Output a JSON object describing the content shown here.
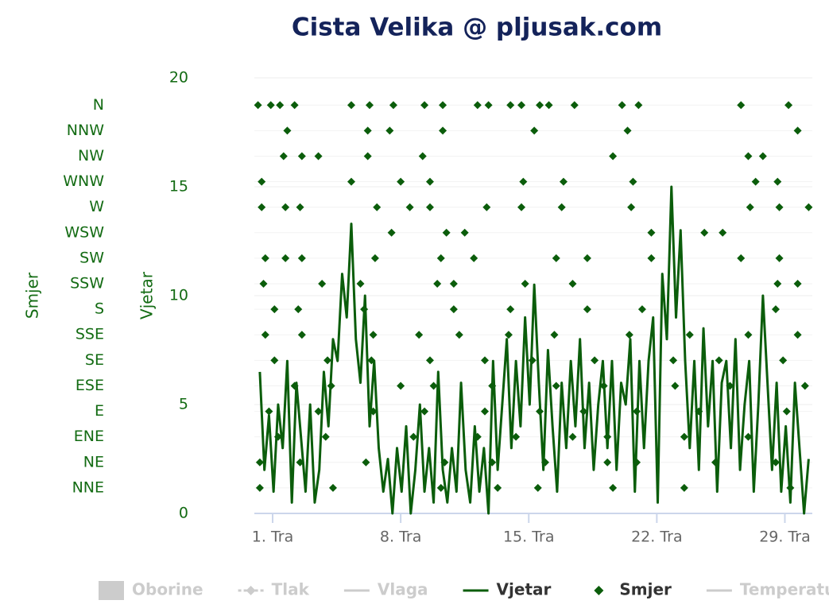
{
  "chart_data": {
    "type": "line",
    "title": "Cista Velika @ pljusak.com",
    "y_label": "Vjetar",
    "y2_label": "Smjer",
    "xlim": [
      0,
      30.5
    ],
    "xticks": [
      {
        "value": 1,
        "label": "1. Tra"
      },
      {
        "value": 8,
        "label": "8. Tra"
      },
      {
        "value": 15,
        "label": "15. Tra"
      },
      {
        "value": 22,
        "label": "22. Tra"
      },
      {
        "value": 29,
        "label": "29. Tra"
      }
    ],
    "ylim": [
      0,
      20
    ],
    "yticks": [
      0,
      5,
      10,
      15,
      20
    ],
    "y2lim": [
      0,
      384
    ],
    "y2ticks": [
      {
        "value": 22.5,
        "label": "NNE"
      },
      {
        "value": 45,
        "label": "NE"
      },
      {
        "value": 67.5,
        "label": "ENE"
      },
      {
        "value": 90,
        "label": "E"
      },
      {
        "value": 112.5,
        "label": "ESE"
      },
      {
        "value": 135,
        "label": "SE"
      },
      {
        "value": 157.5,
        "label": "SSE"
      },
      {
        "value": 180,
        "label": "S"
      },
      {
        "value": 202.5,
        "label": "SSW"
      },
      {
        "value": 225,
        "label": "SW"
      },
      {
        "value": 247.5,
        "label": "WSW"
      },
      {
        "value": 270,
        "label": "W"
      },
      {
        "value": 292.5,
        "label": "WNW"
      },
      {
        "value": 315,
        "label": "NW"
      },
      {
        "value": 337.5,
        "label": "NNW"
      },
      {
        "value": 360,
        "label": "N"
      }
    ],
    "grid": true,
    "series": [
      {
        "name": "Oborine",
        "color": "#cccccc",
        "kind": "column",
        "hidden": true
      },
      {
        "name": "Tlak",
        "color": "#cccccc",
        "kind": "line",
        "marker": "diamond",
        "dashed": true,
        "hidden": true
      },
      {
        "name": "Vlaga",
        "color": "#cccccc",
        "kind": "line",
        "hidden": true
      },
      {
        "name": "Vjetar",
        "color": "#0b5d0b",
        "kind": "line",
        "x": [
          0.3,
          0.55,
          0.8,
          1.05,
          1.3,
          1.55,
          1.8,
          2.05,
          2.3,
          2.55,
          2.8,
          3.05,
          3.3,
          3.55,
          3.8,
          4.05,
          4.3,
          4.55,
          4.8,
          5.05,
          5.3,
          5.55,
          5.8,
          6.05,
          6.3,
          6.55,
          6.8,
          7.05,
          7.3,
          7.55,
          7.8,
          8.05,
          8.3,
          8.55,
          8.8,
          9.05,
          9.3,
          9.55,
          9.8,
          10.05,
          10.3,
          10.55,
          10.8,
          11.05,
          11.3,
          11.55,
          11.8,
          12.05,
          12.3,
          12.55,
          12.8,
          13.05,
          13.3,
          13.55,
          13.8,
          14.05,
          14.3,
          14.55,
          14.8,
          15.05,
          15.3,
          15.55,
          15.8,
          16.05,
          16.3,
          16.55,
          16.8,
          17.05,
          17.3,
          17.55,
          17.8,
          18.05,
          18.3,
          18.55,
          18.8,
          19.05,
          19.3,
          19.55,
          19.8,
          20.05,
          20.3,
          20.55,
          20.8,
          21.05,
          21.3,
          21.55,
          21.8,
          22.05,
          22.3,
          22.55,
          22.8,
          23.05,
          23.3,
          23.55,
          23.8,
          24.05,
          24.3,
          24.55,
          24.8,
          25.05,
          25.3,
          25.55,
          25.8,
          26.05,
          26.3,
          26.55,
          26.8,
          27.05,
          27.3,
          27.55,
          27.8,
          28.05,
          28.3,
          28.55,
          28.8,
          29.05,
          29.3,
          29.55,
          29.8,
          30.05,
          30.3
        ],
        "values": [
          6.5,
          2,
          4.5,
          1,
          5,
          3,
          7,
          0.5,
          6,
          3.5,
          1,
          5,
          0.5,
          2,
          6.5,
          4,
          8,
          7,
          11,
          9,
          13.3,
          8,
          6,
          10,
          4,
          7,
          3,
          1,
          2.5,
          0,
          3,
          1,
          4,
          0,
          2,
          5,
          1,
          3,
          0.5,
          6.5,
          2,
          0.5,
          3,
          1,
          6,
          2,
          0.5,
          4,
          1,
          3,
          0,
          7,
          2,
          5,
          8,
          3,
          7,
          4,
          9,
          5,
          10.5,
          6,
          2,
          7.5,
          4,
          1,
          6,
          3,
          7,
          4,
          8,
          3,
          6,
          2,
          5,
          7,
          3,
          7,
          2,
          6,
          5,
          8,
          1,
          7,
          3,
          7,
          9,
          0.5,
          11,
          8,
          15,
          9,
          13,
          7,
          3,
          7,
          2,
          8.5,
          4,
          7,
          1,
          6,
          7,
          3,
          8,
          2,
          5,
          7,
          1,
          5,
          10,
          6,
          2,
          6,
          1,
          4,
          0.5,
          6,
          3,
          0,
          2.5
        ]
      },
      {
        "name": "Smjer",
        "color": "#0b5d0b",
        "kind": "scatter",
        "marker": "diamond",
        "axis": "y2",
        "x": [
          0.2,
          0.9,
          1.4,
          2.2,
          5.3,
          6.3,
          7.6,
          9.3,
          10.3,
          12.2,
          12.8,
          14.0,
          14.6,
          15.6,
          16.1,
          17.5,
          20.1,
          21.0,
          26.6,
          29.2,
          1.8,
          6.2,
          7.4,
          10.3,
          15.3,
          20.4,
          29.7,
          1.6,
          2.6,
          3.5,
          6.2,
          9.2,
          19.6,
          27.0,
          27.8,
          0.4,
          5.3,
          8.0,
          9.6,
          14.7,
          16.9,
          20.7,
          27.4,
          28.6,
          0.4,
          1.7,
          2.5,
          6.7,
          8.5,
          9.6,
          12.7,
          14.6,
          16.8,
          20.6,
          27.1,
          28.7,
          30.3,
          7.5,
          10.5,
          11.5,
          21.7,
          24.6,
          25.6,
          0.6,
          1.7,
          2.6,
          6.6,
          10.2,
          12.0,
          16.5,
          18.2,
          21.7,
          26.6,
          28.7,
          0.5,
          3.7,
          5.8,
          10.0,
          10.9,
          14.8,
          17.4,
          28.6,
          29.7,
          1.1,
          2.4,
          6.0,
          10.9,
          14.0,
          18.2,
          21.2,
          28.5,
          0.6,
          2.6,
          6.5,
          9.0,
          11.2,
          13.9,
          16.4,
          20.5,
          23.8,
          27.0,
          29.7,
          1.1,
          4.0,
          6.4,
          9.6,
          12.6,
          15.2,
          18.6,
          22.9,
          25.4,
          28.9,
          2.2,
          4.2,
          8.0,
          9.8,
          13.0,
          16.5,
          19.1,
          23.0,
          26.0,
          30.1,
          0.8,
          3.5,
          6.5,
          9.3,
          12.6,
          15.6,
          18.0,
          20.9,
          24.3,
          29.1,
          1.3,
          3.9,
          8.7,
          12.2,
          14.3,
          17.4,
          19.3,
          23.5,
          27.0,
          0.3,
          2.5,
          6.1,
          10.4,
          13.0,
          15.9,
          19.3,
          20.9,
          25.2,
          28.5,
          0.3,
          4.3,
          10.2,
          13.3,
          15.5,
          19.6,
          23.5,
          29.3
        ],
        "values": [
          360,
          360,
          360,
          360,
          360,
          360,
          360,
          360,
          360,
          360,
          360,
          360,
          360,
          360,
          360,
          360,
          360,
          360,
          360,
          360,
          337.5,
          337.5,
          337.5,
          337.5,
          337.5,
          337.5,
          337.5,
          315,
          315,
          315,
          315,
          315,
          315,
          315,
          315,
          292.5,
          292.5,
          292.5,
          292.5,
          292.5,
          292.5,
          292.5,
          292.5,
          292.5,
          270,
          270,
          270,
          270,
          270,
          270,
          270,
          270,
          270,
          270,
          270,
          270,
          270,
          247.5,
          247.5,
          247.5,
          247.5,
          247.5,
          247.5,
          225,
          225,
          225,
          225,
          225,
          225,
          225,
          225,
          225,
          225,
          225,
          202.5,
          202.5,
          202.5,
          202.5,
          202.5,
          202.5,
          202.5,
          202.5,
          202.5,
          180,
          180,
          180,
          180,
          180,
          180,
          180,
          180,
          157.5,
          157.5,
          157.5,
          157.5,
          157.5,
          157.5,
          157.5,
          157.5,
          157.5,
          157.5,
          157.5,
          135,
          135,
          135,
          135,
          135,
          135,
          135,
          135,
          135,
          135,
          112.5,
          112.5,
          112.5,
          112.5,
          112.5,
          112.5,
          112.5,
          112.5,
          112.5,
          112.5,
          90,
          90,
          90,
          90,
          90,
          90,
          90,
          90,
          90,
          90,
          67.5,
          67.5,
          67.5,
          67.5,
          67.5,
          67.5,
          67.5,
          67.5,
          67.5,
          45,
          45,
          45,
          45,
          45,
          45,
          45,
          45,
          45,
          45,
          22.5,
          22.5,
          22.5,
          22.5,
          22.5,
          22.5,
          22.5,
          22.5
        ]
      },
      {
        "name": "Temperatura",
        "color": "#cccccc",
        "kind": "line",
        "hidden": true
      }
    ]
  }
}
